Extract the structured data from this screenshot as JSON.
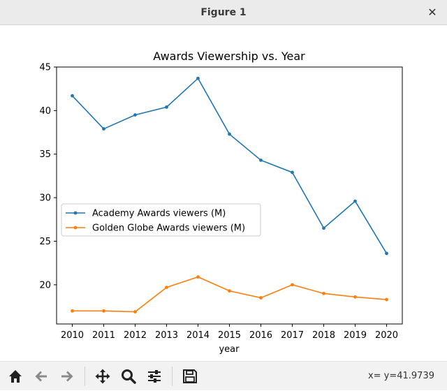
{
  "window": {
    "title": "Figure 1"
  },
  "toolbar": {
    "icons": [
      "home-icon",
      "back-icon",
      "forward-icon",
      "pan-icon",
      "zoom-icon",
      "configure-icon",
      "save-icon"
    ],
    "coords": "x= y=41.9739"
  },
  "chart_data": {
    "type": "line",
    "title": "Awards Viewership vs. Year",
    "xlabel": "year",
    "ylabel": "",
    "x": [
      2010,
      2011,
      2012,
      2013,
      2014,
      2015,
      2016,
      2017,
      2018,
      2019,
      2020
    ],
    "xlim": [
      2009.5,
      2020.5
    ],
    "ylim": [
      15.5,
      45
    ],
    "yticks": [
      20,
      25,
      30,
      35,
      40,
      45
    ],
    "legend": "center-left",
    "grid": false,
    "series": [
      {
        "name": "Academy Awards viewers (M)",
        "color": "#1f77b4",
        "values": [
          41.7,
          37.9,
          39.5,
          40.4,
          43.7,
          37.3,
          34.3,
          32.9,
          26.5,
          29.6,
          23.6
        ]
      },
      {
        "name": "Golden Globe Awards viewers (M)",
        "color": "#ff7f0e",
        "values": [
          17.0,
          17.0,
          16.9,
          19.7,
          20.9,
          19.3,
          18.5,
          20.0,
          19.0,
          18.6,
          18.3
        ]
      }
    ]
  }
}
